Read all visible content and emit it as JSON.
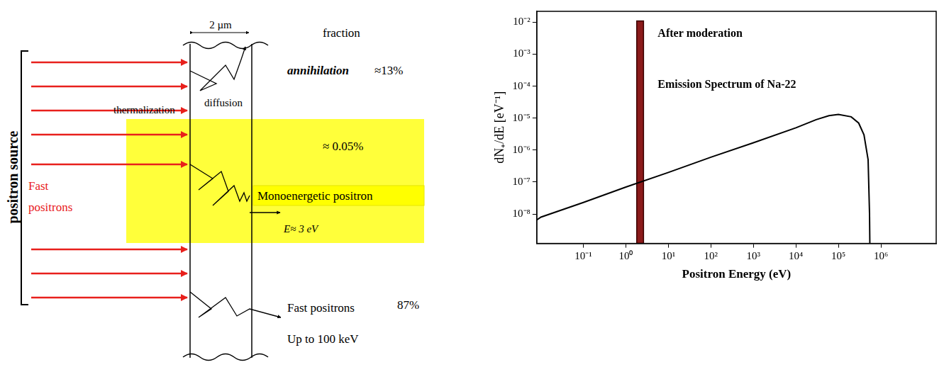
{
  "diagram": {
    "slab_width": "2 µm",
    "fraction_header": "fraction",
    "source_label": "positron source",
    "incoming_label": "Fast positrons",
    "paths": [
      {
        "label": "annihilation",
        "fraction": "≈13%",
        "steps": [
          "thermalization",
          "diffusion"
        ]
      },
      {
        "label": "Monoenergetic positron",
        "fraction": "≈ 0.05%",
        "energy": "E≈ 3 eV"
      },
      {
        "label": "Fast positrons",
        "fraction": "87%",
        "energy": "Up to 100 keV"
      }
    ]
  },
  "chart_data": {
    "type": "line",
    "log": true,
    "grid": false,
    "xlabel": "Positron Energy (eV)",
    "ylabel": "dN₊/dE [eV⁻¹]",
    "annotations": [
      "After moderation",
      "Emission Spectrum of Na-22"
    ],
    "xlim": [
      0.008,
      20000000
    ],
    "ylim": [
      1.2e-09,
      0.022
    ],
    "xticks": [
      {
        "value": 0.1,
        "label": "10⁻¹"
      },
      {
        "value": 1,
        "label": "10⁰"
      },
      {
        "value": 10,
        "label": "10¹"
      },
      {
        "value": 100,
        "label": "10²"
      },
      {
        "value": 1000,
        "label": "10³"
      },
      {
        "value": 10000,
        "label": "10⁴"
      },
      {
        "value": 100000,
        "label": "10⁵"
      },
      {
        "value": 1000000,
        "label": "10⁶"
      }
    ],
    "yticks": [
      {
        "value": 1e-08,
        "label": "10⁻⁸"
      },
      {
        "value": 1e-07,
        "label": "10⁻⁷"
      },
      {
        "value": 1e-06,
        "label": "10⁻⁶"
      },
      {
        "value": 1e-05,
        "label": "10⁻⁵"
      },
      {
        "value": 0.0001,
        "label": "10⁻⁴"
      },
      {
        "value": 0.001,
        "label": "10⁻³"
      },
      {
        "value": 0.01,
        "label": "10⁻²"
      }
    ],
    "series": [
      {
        "type": "line",
        "color": "#000000",
        "x": [
          0.008,
          0.01,
          0.1,
          1,
          10,
          100,
          1000,
          10000,
          30000,
          60000,
          100000,
          200000,
          300000,
          400000,
          500000,
          540000,
          550000
        ],
        "values": [
          6.5e-09,
          8e-09,
          2.3e-08,
          7e-08,
          2e-07,
          6e-07,
          1.7e-06,
          5e-06,
          9e-06,
          1.2e-05,
          1.3e-05,
          1.1e-05,
          7e-06,
          3e-06,
          5e-07,
          1e-08,
          1e-09
        ]
      },
      {
        "type": "bar",
        "color": "#8b1a1a",
        "bins": [
          1.8,
          2.6
        ],
        "values": [
          0.011
        ]
      }
    ]
  }
}
